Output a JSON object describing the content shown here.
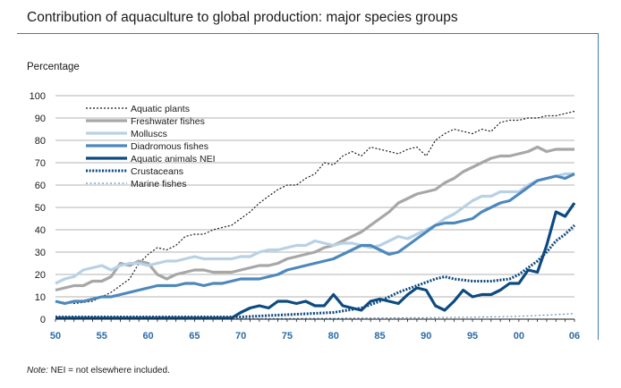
{
  "page": {
    "title": "Contribution of aquaculture to global production: major species groups",
    "note_prefix": "Note:",
    "note_text": " NEI = not elsewhere included."
  },
  "chart_data": {
    "type": "line",
    "title": "Contribution of aquaculture to global production: major species groups",
    "ylabel": "Percentage",
    "xlabel": "",
    "ylim": [
      0,
      100
    ],
    "xlim": [
      1950,
      2006
    ],
    "y_ticks": [
      "0",
      "10",
      "20",
      "30",
      "40",
      "50",
      "60",
      "70",
      "80",
      "90",
      "100"
    ],
    "x_ticks": [
      {
        "value": 1950,
        "label": "50"
      },
      {
        "value": 1955,
        "label": "55"
      },
      {
        "value": 1960,
        "label": "60"
      },
      {
        "value": 1965,
        "label": "65"
      },
      {
        "value": 1970,
        "label": "70"
      },
      {
        "value": 1975,
        "label": "75"
      },
      {
        "value": 1980,
        "label": "80"
      },
      {
        "value": 1985,
        "label": "85"
      },
      {
        "value": 1990,
        "label": "90"
      },
      {
        "value": 1995,
        "label": "95"
      },
      {
        "value": 2000,
        "label": "00"
      },
      {
        "value": 2006,
        "label": "06"
      }
    ],
    "grid": "horizontal",
    "legend_position": "top-left",
    "series": [
      {
        "name": "Aquatic plants",
        "color": "#1a1a1a",
        "style": "dotted",
        "points": [
          [
            1950,
            8
          ],
          [
            1952,
            7
          ],
          [
            1954,
            8
          ],
          [
            1956,
            12
          ],
          [
            1958,
            18
          ],
          [
            1959,
            25
          ],
          [
            1960,
            29
          ],
          [
            1961,
            32
          ],
          [
            1962,
            31
          ],
          [
            1963,
            33
          ],
          [
            1964,
            37
          ],
          [
            1965,
            38
          ],
          [
            1966,
            38
          ],
          [
            1967,
            40
          ],
          [
            1968,
            41
          ],
          [
            1969,
            42
          ],
          [
            1970,
            45
          ],
          [
            1971,
            48
          ],
          [
            1972,
            52
          ],
          [
            1973,
            55
          ],
          [
            1974,
            58
          ],
          [
            1975,
            60
          ],
          [
            1976,
            60
          ],
          [
            1977,
            63
          ],
          [
            1978,
            65
          ],
          [
            1979,
            70
          ],
          [
            1980,
            69
          ],
          [
            1981,
            73
          ],
          [
            1982,
            75
          ],
          [
            1983,
            73
          ],
          [
            1984,
            77
          ],
          [
            1985,
            76
          ],
          [
            1986,
            75
          ],
          [
            1987,
            74
          ],
          [
            1988,
            76
          ],
          [
            1989,
            77
          ],
          [
            1990,
            73
          ],
          [
            1991,
            80
          ],
          [
            1992,
            83
          ],
          [
            1993,
            85
          ],
          [
            1994,
            84
          ],
          [
            1995,
            83
          ],
          [
            1996,
            85
          ],
          [
            1997,
            84
          ],
          [
            1998,
            88
          ],
          [
            1999,
            89
          ],
          [
            2000,
            89
          ],
          [
            2001,
            90
          ],
          [
            2002,
            90
          ],
          [
            2003,
            91
          ],
          [
            2004,
            91
          ],
          [
            2005,
            92
          ],
          [
            2006,
            93
          ]
        ]
      },
      {
        "name": "Freshwater fishes",
        "color": "#a7a7a7",
        "style": "thick",
        "points": [
          [
            1950,
            13
          ],
          [
            1951,
            14
          ],
          [
            1952,
            15
          ],
          [
            1953,
            15
          ],
          [
            1954,
            17
          ],
          [
            1955,
            17
          ],
          [
            1956,
            19
          ],
          [
            1957,
            25
          ],
          [
            1958,
            24
          ],
          [
            1959,
            26
          ],
          [
            1960,
            25
          ],
          [
            1961,
            20
          ],
          [
            1962,
            18
          ],
          [
            1963,
            20
          ],
          [
            1964,
            21
          ],
          [
            1965,
            22
          ],
          [
            1966,
            22
          ],
          [
            1967,
            21
          ],
          [
            1968,
            21
          ],
          [
            1969,
            21
          ],
          [
            1970,
            22
          ],
          [
            1971,
            23
          ],
          [
            1972,
            24
          ],
          [
            1973,
            24
          ],
          [
            1974,
            25
          ],
          [
            1975,
            27
          ],
          [
            1976,
            28
          ],
          [
            1977,
            29
          ],
          [
            1978,
            30
          ],
          [
            1979,
            32
          ],
          [
            1980,
            33
          ],
          [
            1981,
            35
          ],
          [
            1982,
            37
          ],
          [
            1983,
            39
          ],
          [
            1984,
            42
          ],
          [
            1985,
            45
          ],
          [
            1986,
            48
          ],
          [
            1987,
            52
          ],
          [
            1988,
            54
          ],
          [
            1989,
            56
          ],
          [
            1990,
            57
          ],
          [
            1991,
            58
          ],
          [
            1992,
            61
          ],
          [
            1993,
            63
          ],
          [
            1994,
            66
          ],
          [
            1995,
            68
          ],
          [
            1996,
            70
          ],
          [
            1997,
            72
          ],
          [
            1998,
            73
          ],
          [
            1999,
            73
          ],
          [
            2000,
            74
          ],
          [
            2001,
            75
          ],
          [
            2002,
            77
          ],
          [
            2003,
            75
          ],
          [
            2004,
            76
          ],
          [
            2005,
            76
          ],
          [
            2006,
            76
          ]
        ]
      },
      {
        "name": "Molluscs",
        "color": "#b9d1e5",
        "style": "thick",
        "points": [
          [
            1950,
            16
          ],
          [
            1951,
            18
          ],
          [
            1952,
            19
          ],
          [
            1953,
            22
          ],
          [
            1954,
            23
          ],
          [
            1955,
            24
          ],
          [
            1956,
            22
          ],
          [
            1957,
            24
          ],
          [
            1958,
            25
          ],
          [
            1959,
            25
          ],
          [
            1960,
            24
          ],
          [
            1961,
            25
          ],
          [
            1962,
            26
          ],
          [
            1963,
            26
          ],
          [
            1964,
            27
          ],
          [
            1965,
            28
          ],
          [
            1966,
            27
          ],
          [
            1967,
            27
          ],
          [
            1968,
            27
          ],
          [
            1969,
            27
          ],
          [
            1970,
            28
          ],
          [
            1971,
            28
          ],
          [
            1972,
            30
          ],
          [
            1973,
            31
          ],
          [
            1974,
            31
          ],
          [
            1975,
            32
          ],
          [
            1976,
            33
          ],
          [
            1977,
            33
          ],
          [
            1978,
            35
          ],
          [
            1979,
            34
          ],
          [
            1980,
            33
          ],
          [
            1981,
            34
          ],
          [
            1982,
            34
          ],
          [
            1983,
            33
          ],
          [
            1984,
            32
          ],
          [
            1985,
            33
          ],
          [
            1986,
            35
          ],
          [
            1987,
            37
          ],
          [
            1988,
            36
          ],
          [
            1989,
            38
          ],
          [
            1990,
            40
          ],
          [
            1991,
            42
          ],
          [
            1992,
            45
          ],
          [
            1993,
            47
          ],
          [
            1994,
            50
          ],
          [
            1995,
            53
          ],
          [
            1996,
            55
          ],
          [
            1997,
            55
          ],
          [
            1998,
            57
          ],
          [
            1999,
            57
          ],
          [
            2000,
            57
          ],
          [
            2001,
            60
          ],
          [
            2002,
            62
          ],
          [
            2003,
            63
          ],
          [
            2004,
            64
          ],
          [
            2005,
            65
          ],
          [
            2006,
            65
          ]
        ]
      },
      {
        "name": "Diadromous fishes",
        "color": "#4d88bd",
        "style": "thick",
        "points": [
          [
            1950,
            8
          ],
          [
            1951,
            7
          ],
          [
            1952,
            8
          ],
          [
            1953,
            8
          ],
          [
            1954,
            9
          ],
          [
            1955,
            10
          ],
          [
            1956,
            10
          ],
          [
            1957,
            11
          ],
          [
            1958,
            12
          ],
          [
            1959,
            13
          ],
          [
            1960,
            14
          ],
          [
            1961,
            15
          ],
          [
            1962,
            15
          ],
          [
            1963,
            15
          ],
          [
            1964,
            16
          ],
          [
            1965,
            16
          ],
          [
            1966,
            15
          ],
          [
            1967,
            16
          ],
          [
            1968,
            16
          ],
          [
            1969,
            17
          ],
          [
            1970,
            18
          ],
          [
            1971,
            18
          ],
          [
            1972,
            18
          ],
          [
            1973,
            19
          ],
          [
            1974,
            20
          ],
          [
            1975,
            22
          ],
          [
            1976,
            23
          ],
          [
            1977,
            24
          ],
          [
            1978,
            25
          ],
          [
            1979,
            26
          ],
          [
            1980,
            27
          ],
          [
            1981,
            29
          ],
          [
            1982,
            31
          ],
          [
            1983,
            33
          ],
          [
            1984,
            33
          ],
          [
            1985,
            31
          ],
          [
            1986,
            29
          ],
          [
            1987,
            30
          ],
          [
            1988,
            33
          ],
          [
            1989,
            36
          ],
          [
            1990,
            39
          ],
          [
            1991,
            42
          ],
          [
            1992,
            43
          ],
          [
            1993,
            43
          ],
          [
            1994,
            44
          ],
          [
            1995,
            45
          ],
          [
            1996,
            48
          ],
          [
            1997,
            50
          ],
          [
            1998,
            52
          ],
          [
            1999,
            53
          ],
          [
            2000,
            56
          ],
          [
            2001,
            59
          ],
          [
            2002,
            62
          ],
          [
            2003,
            63
          ],
          [
            2004,
            64
          ],
          [
            2005,
            63
          ],
          [
            2006,
            65
          ]
        ]
      },
      {
        "name": "Aquatic animals NEI",
        "color": "#0d4a80",
        "style": "thick",
        "points": [
          [
            1950,
            0.5
          ],
          [
            1960,
            0.5
          ],
          [
            1969,
            0.5
          ],
          [
            1970,
            3
          ],
          [
            1971,
            5
          ],
          [
            1972,
            6
          ],
          [
            1973,
            5
          ],
          [
            1974,
            8
          ],
          [
            1975,
            8
          ],
          [
            1976,
            7
          ],
          [
            1977,
            8
          ],
          [
            1978,
            6
          ],
          [
            1979,
            6
          ],
          [
            1980,
            11
          ],
          [
            1981,
            6
          ],
          [
            1982,
            5
          ],
          [
            1983,
            4
          ],
          [
            1984,
            8
          ],
          [
            1985,
            9
          ],
          [
            1986,
            8
          ],
          [
            1987,
            7
          ],
          [
            1988,
            11
          ],
          [
            1989,
            14
          ],
          [
            1990,
            13
          ],
          [
            1991,
            6
          ],
          [
            1992,
            4
          ],
          [
            1993,
            8
          ],
          [
            1994,
            13
          ],
          [
            1995,
            10
          ],
          [
            1996,
            11
          ],
          [
            1997,
            11
          ],
          [
            1998,
            13
          ],
          [
            1999,
            16
          ],
          [
            2000,
            16
          ],
          [
            2001,
            22
          ],
          [
            2002,
            21
          ],
          [
            2003,
            33
          ],
          [
            2004,
            48
          ],
          [
            2005,
            46
          ],
          [
            2006,
            52
          ]
        ]
      },
      {
        "name": "Crustaceans",
        "color": "#0d4a80",
        "style": "densedot",
        "points": [
          [
            1950,
            1
          ],
          [
            1960,
            1
          ],
          [
            1970,
            1
          ],
          [
            1975,
            2
          ],
          [
            1980,
            3
          ],
          [
            1983,
            5
          ],
          [
            1985,
            8
          ],
          [
            1987,
            12
          ],
          [
            1989,
            15
          ],
          [
            1991,
            18
          ],
          [
            1992,
            19
          ],
          [
            1993,
            18
          ],
          [
            1995,
            17
          ],
          [
            1997,
            17
          ],
          [
            1999,
            18
          ],
          [
            2000,
            20
          ],
          [
            2001,
            23
          ],
          [
            2002,
            26
          ],
          [
            2003,
            30
          ],
          [
            2004,
            35
          ],
          [
            2005,
            38
          ],
          [
            2006,
            42
          ]
        ]
      },
      {
        "name": "Marine fishes",
        "color": "#3d7ab8",
        "style": "finedot",
        "points": [
          [
            1950,
            0
          ],
          [
            1960,
            0
          ],
          [
            1970,
            0.2
          ],
          [
            1980,
            0.4
          ],
          [
            1990,
            0.7
          ],
          [
            1995,
            0.9
          ],
          [
            2000,
            1.3
          ],
          [
            2003,
            1.8
          ],
          [
            2006,
            2.5
          ]
        ]
      }
    ]
  }
}
